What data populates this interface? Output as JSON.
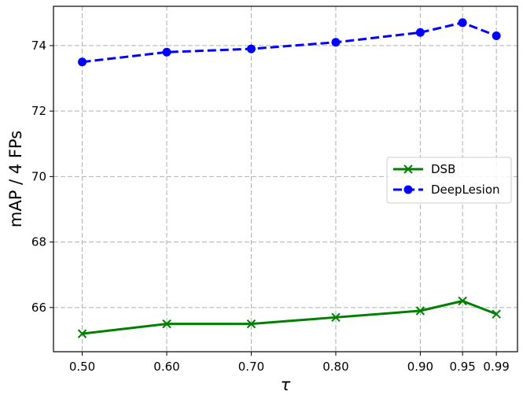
{
  "chart_data": {
    "type": "line",
    "x": [
      0.5,
      0.6,
      0.7,
      0.8,
      0.9,
      0.95,
      0.99
    ],
    "xticks": [
      0.5,
      0.6,
      0.7,
      0.8,
      0.9,
      0.95,
      0.99
    ],
    "xtick_labels": [
      "0.50",
      "0.60",
      "0.70",
      "0.80",
      "0.90",
      "0.95",
      "0.99"
    ],
    "yticks": [
      66,
      68,
      70,
      72,
      74
    ],
    "ytick_labels": [
      "66",
      "68",
      "70",
      "72",
      "74"
    ],
    "xlim": [
      0.466,
      1.015
    ],
    "ylim": [
      64.65,
      75.2
    ],
    "xlabel": "τ",
    "ylabel": "mAP / 4 FPs",
    "grid": true,
    "legend_position": "center-right",
    "series": [
      {
        "name": "DSB",
        "values": [
          65.2,
          65.5,
          65.5,
          65.7,
          65.9,
          66.2,
          65.8
        ],
        "color": "#008000",
        "marker": "x",
        "linestyle": "solid"
      },
      {
        "name": "DeepLesion",
        "values": [
          73.5,
          73.8,
          73.9,
          74.1,
          74.4,
          74.7,
          74.3
        ],
        "color": "#0000ff",
        "marker": "circle",
        "linestyle": "dashed"
      }
    ]
  }
}
